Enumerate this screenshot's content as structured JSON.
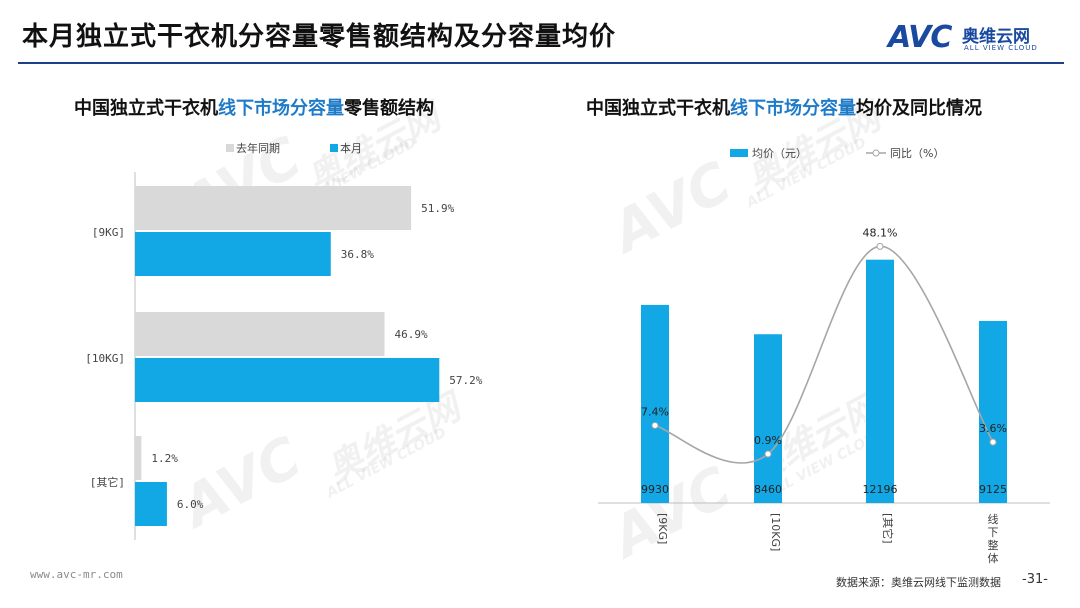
{
  "header": {
    "title": "本月独立式干衣机分容量零售额结构及分容量均价"
  },
  "logo": {
    "mark": "AVC",
    "cn": "奥维云网",
    "en": "ALL VIEW CLOUD"
  },
  "left_chart_title": {
    "pre": "中国独立式干衣机",
    "hl": "线下市场分容量",
    "post": "零售额结构"
  },
  "right_chart_title": {
    "pre": "中国独立式干衣机",
    "hl": "线下市场分容量",
    "post": "均价及同比情况"
  },
  "watermark": {
    "mark": "AVC",
    "cn": "奥维云网",
    "en": "ALL VIEW CLOUD"
  },
  "chart_data": [
    {
      "type": "bar",
      "orientation": "horizontal",
      "categories": [
        "[9KG]",
        "[10KG]",
        "[其它]"
      ],
      "series": [
        {
          "name": "去年同期",
          "color": "#d9d9d9",
          "values": [
            51.9,
            46.9,
            1.2
          ],
          "labels": [
            "51.9%",
            "46.9%",
            "1.2%"
          ]
        },
        {
          "name": "本月",
          "color": "#12a8e6",
          "values": [
            36.8,
            57.2,
            6.0
          ],
          "labels": [
            "36.8%",
            "57.2%",
            "6.0%"
          ]
        }
      ],
      "legend": "top"
    },
    {
      "type": "bar",
      "categories": [
        "[9KG]",
        "[10KG]",
        "[其它]",
        "线下整体"
      ],
      "series": [
        {
          "name": "均价（元）",
          "color": "#12a8e6",
          "values": [
            9930,
            8460,
            12196,
            9125
          ],
          "labels": [
            "9930",
            "8460",
            "12196",
            "9125"
          ]
        },
        {
          "name": "同比（%）",
          "type": "line",
          "color": "#a6a6a6",
          "values": [
            7.4,
            0.9,
            48.1,
            3.6
          ],
          "labels": [
            "7.4%",
            "0.9%",
            "48.1%",
            "3.6%"
          ]
        }
      ],
      "legend": "top"
    }
  ],
  "footer": {
    "url": "www.avc-mr.com",
    "source": "数据来源：奥维云网线下监测数据",
    "page": "-31-"
  }
}
